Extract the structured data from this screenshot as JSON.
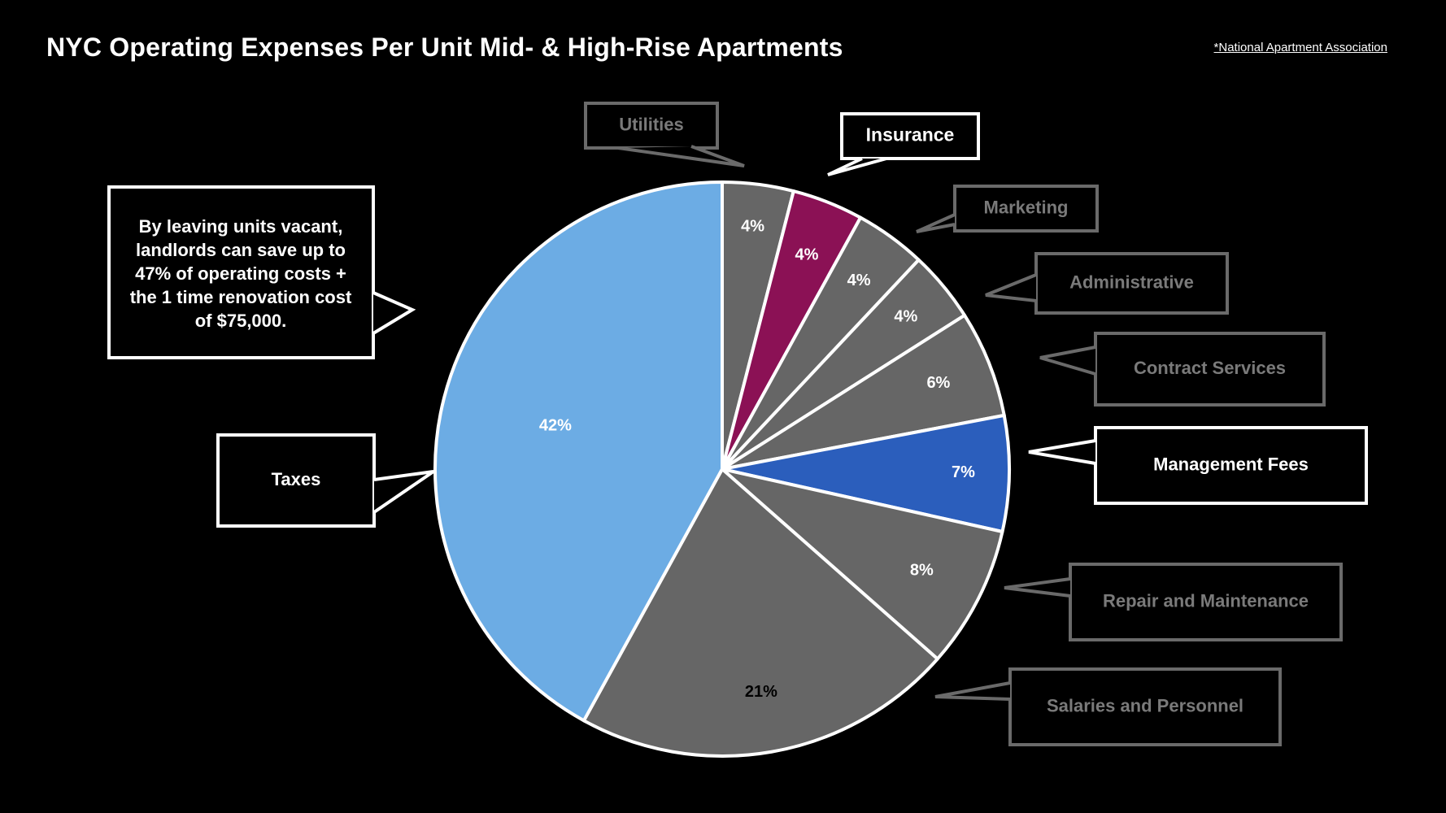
{
  "header": {
    "title": "NYC Operating Expenses Per Unit Mid- & High-Rise Apartments",
    "source": "*National Apartment Association"
  },
  "chart_data": {
    "type": "pie",
    "title": "NYC Operating Expenses Per Unit Mid- & High-Rise Apartments",
    "slices": [
      {
        "label": "Utilities",
        "value": 4,
        "display": "4%",
        "color": "#666666",
        "callout_style": "muted"
      },
      {
        "label": "Insurance",
        "value": 4,
        "display": "4%",
        "color": "#8B1155",
        "callout_style": "highlight"
      },
      {
        "label": "Marketing",
        "value": 4,
        "display": "4%",
        "color": "#666666",
        "callout_style": "muted"
      },
      {
        "label": "Administrative",
        "value": 4,
        "display": "4%",
        "color": "#666666",
        "callout_style": "muted"
      },
      {
        "label": "Contract Services",
        "value": 6,
        "display": "6%",
        "color": "#666666",
        "callout_style": "muted"
      },
      {
        "label": "Management Fees",
        "value": 6.5,
        "display": "7%",
        "color": "#2B5EBC",
        "callout_style": "highlight"
      },
      {
        "label": "Repair and Maintenance",
        "value": 8,
        "display": "8%",
        "color": "#666666",
        "callout_style": "muted"
      },
      {
        "label": "Salaries and Personnel",
        "value": 21.5,
        "display": "21%",
        "color": "#666666",
        "callout_style": "muted"
      },
      {
        "label": "Taxes",
        "value": 42,
        "display": "42%",
        "color": "#6CACE4",
        "callout_style": "highlight"
      }
    ],
    "annotation": {
      "lines": [
        "By leaving units vacant,",
        "landlords can save up to",
        "47% of operating costs +",
        "the 1 time renovation cost",
        "of $75,000."
      ]
    },
    "colors": {
      "background": "#000000",
      "muted_text": "#7a7a7a",
      "muted_border": "#6a6a6a",
      "highlight": "#ffffff"
    }
  }
}
